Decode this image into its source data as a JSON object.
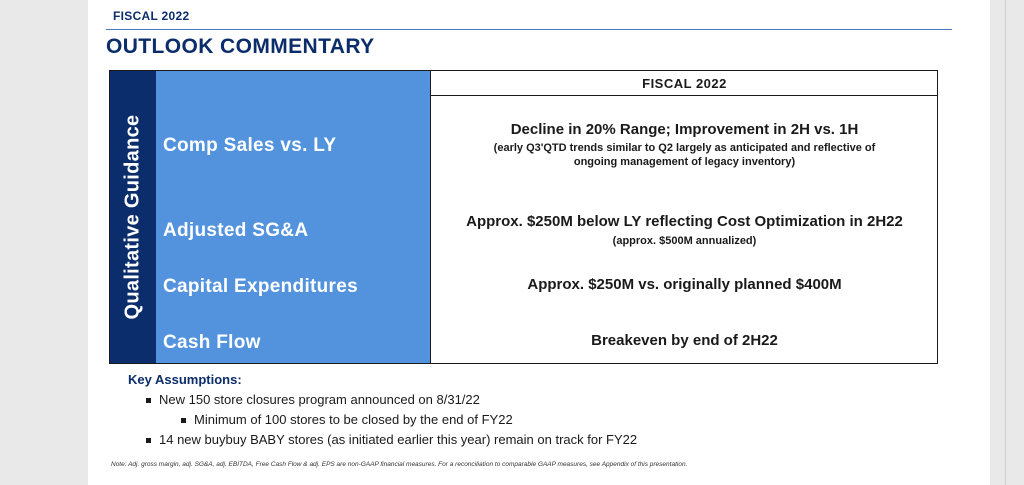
{
  "header": {
    "section_tag": "FISCAL 2022",
    "title": "OUTLOOK COMMENTARY"
  },
  "table": {
    "vertical_label": "Qualitative Guidance",
    "column_header": "FISCAL 2022",
    "rows": [
      {
        "label": "Comp Sales vs. LY",
        "main": "Decline in 20% Range; Improvement in 2H vs. 1H",
        "sub1": "(early Q3'QTD trends similar to Q2 largely as anticipated and reflective of",
        "sub2": "ongoing management of legacy inventory)"
      },
      {
        "label": "Adjusted SG&A",
        "main": "Approx. $250M below LY reflecting Cost Optimization in 2H22",
        "sub1": "(approx. $500M annualized)"
      },
      {
        "label": "Capital Expenditures",
        "main": "Approx. $250M vs. originally planned $400M"
      },
      {
        "label": "Cash Flow",
        "main": "Breakeven by end of 2H22"
      }
    ]
  },
  "assumptions": {
    "heading": "Key Assumptions:",
    "bullets": [
      "New 150 store closures program announced on 8/31/22",
      "Minimum of 100 stores to be closed by the end of FY22",
      "14 new buybuy BABY stores (as initiated earlier this year) remain on track for FY22"
    ]
  },
  "footnote": "Note: Adj. gross margin, adj. SG&A, adj. EBITDA, Free Cash Flow & adj. EPS are non-GAAP financial measures.  For a reconciliation to comparable GAAP measures, see Appendix of this presentation.",
  "colors": {
    "navy": "#0c2d6b",
    "panel_blue": "#5393dd"
  }
}
